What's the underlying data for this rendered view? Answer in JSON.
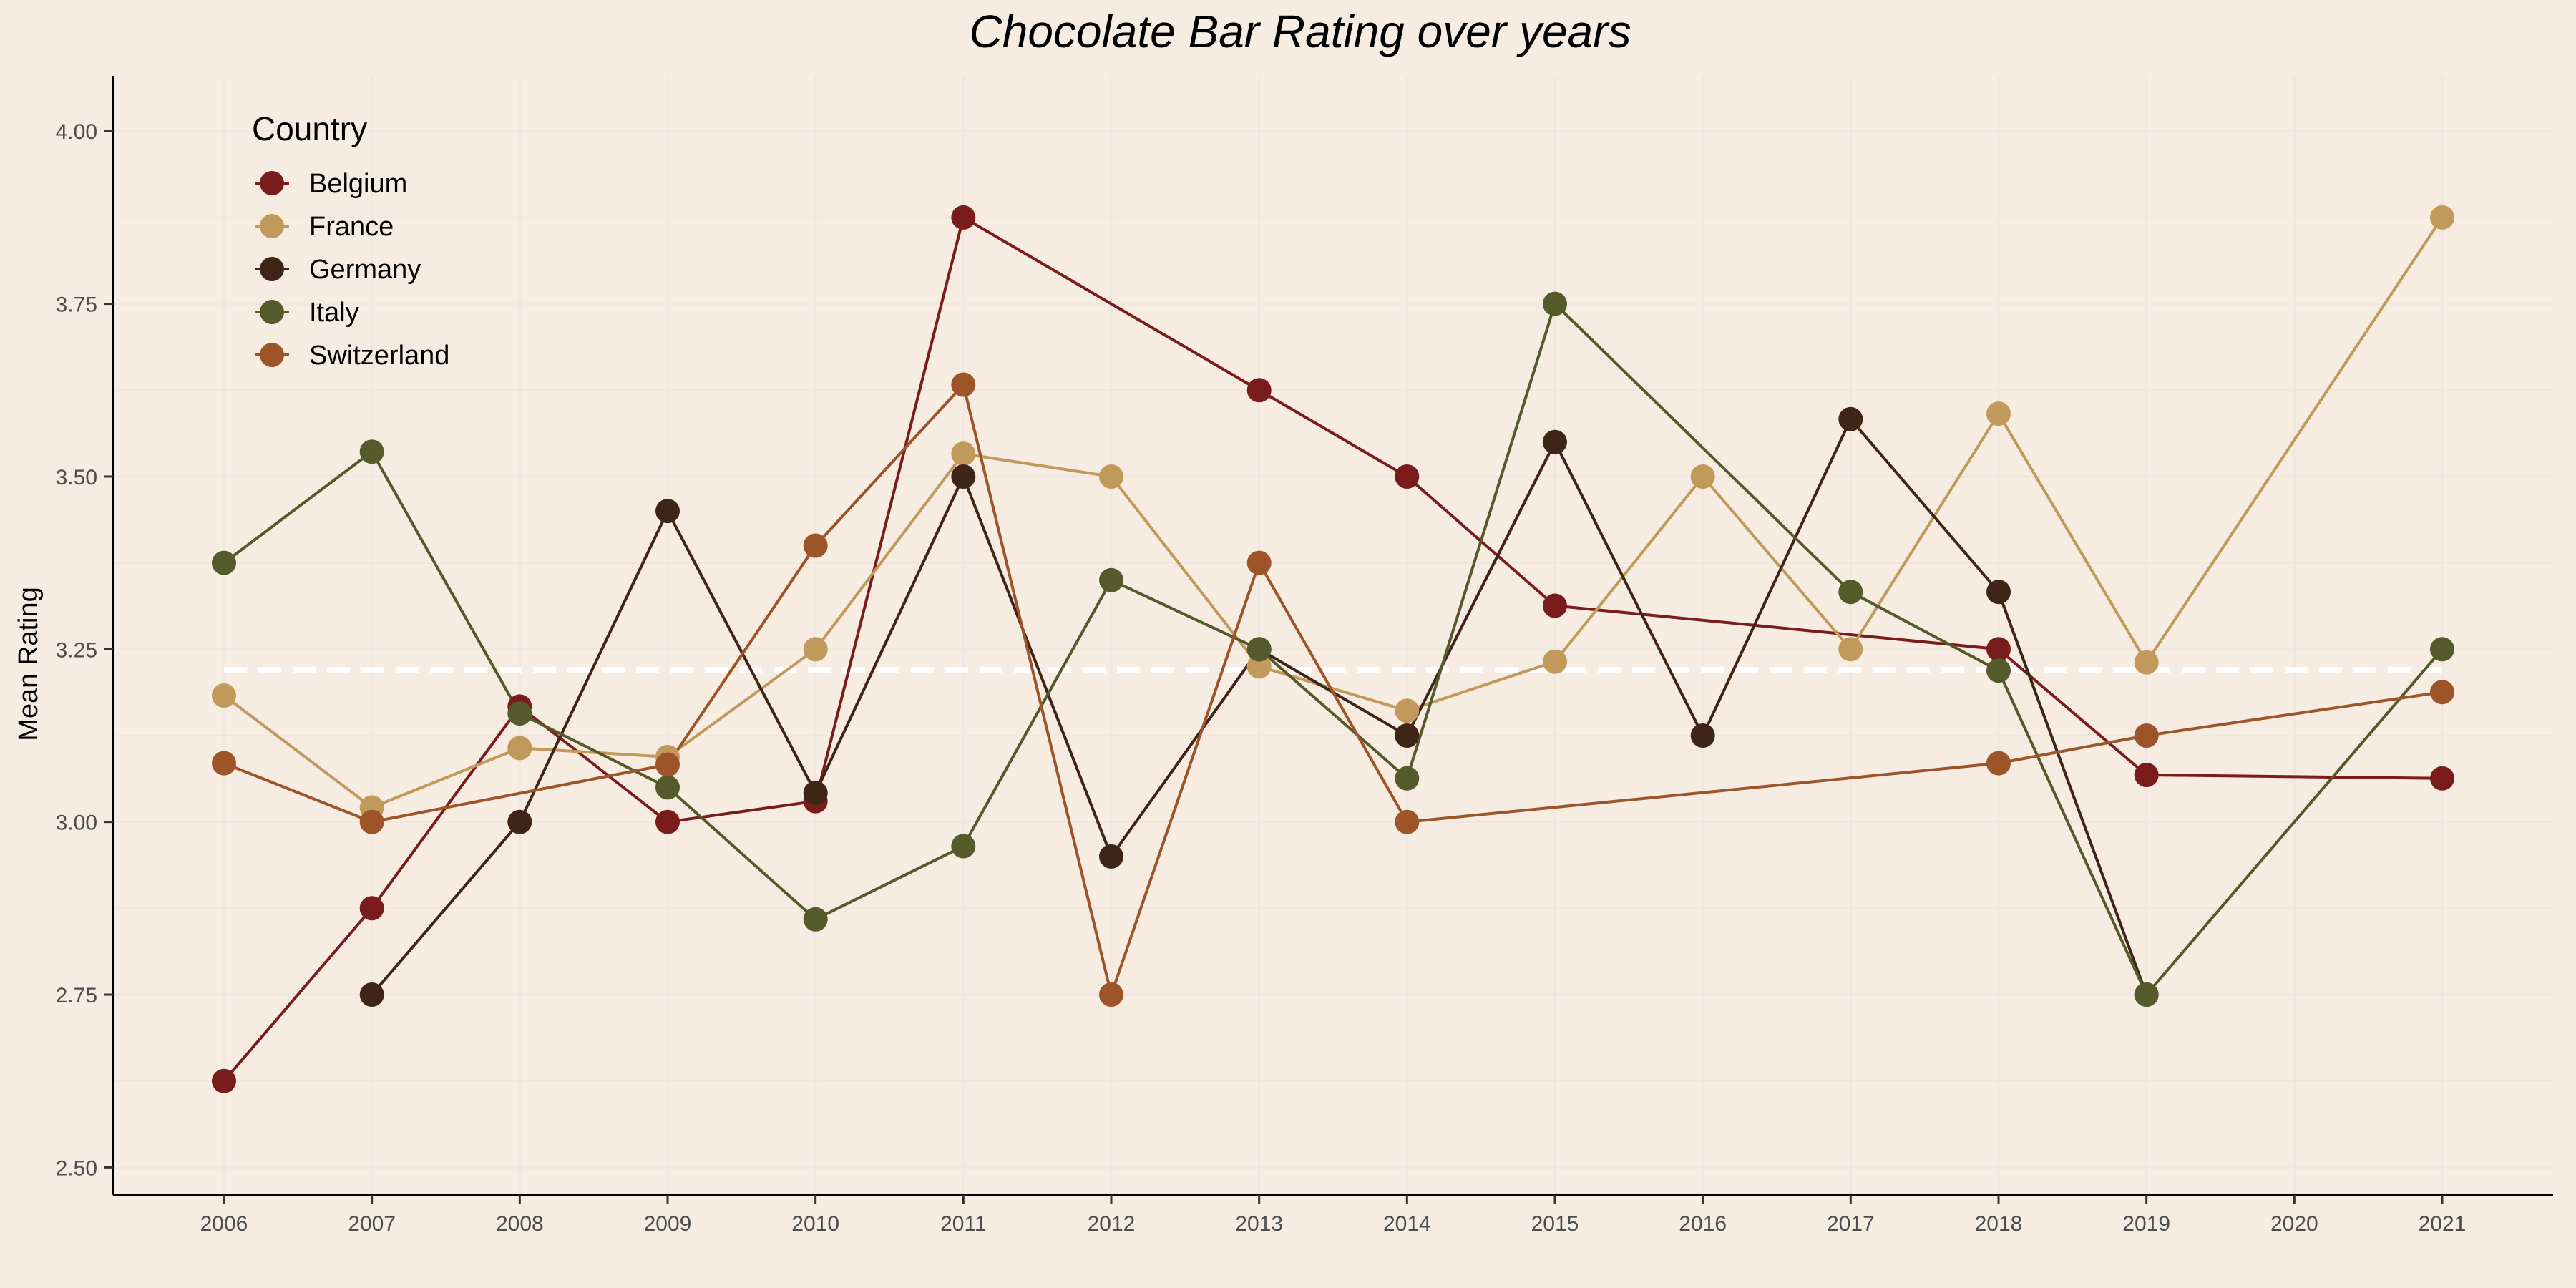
{
  "chart_data": {
    "type": "line",
    "title": "Chocolate Bar Rating over years",
    "xlabel": "",
    "ylabel": "Mean Rating",
    "x": [
      "2006",
      "2007",
      "2008",
      "2009",
      "2010",
      "2011",
      "2012",
      "2013",
      "2014",
      "2015",
      "2016",
      "2017",
      "2018",
      "2019",
      "2020",
      "2021"
    ],
    "ylim": [
      2.46,
      4.08
    ],
    "y_ticks": [
      "2.50",
      "2.75",
      "3.00",
      "3.25",
      "3.50",
      "3.75",
      "4.00"
    ],
    "grid": true,
    "reference_line": {
      "value": 3.22,
      "style": "dashed",
      "color": "#ffffff"
    },
    "legend": {
      "title": "Country",
      "position": "top-left"
    },
    "series": [
      {
        "name": "Belgium",
        "color": "#7a1c1c",
        "points": [
          [
            2006,
            2.625
          ],
          [
            2007,
            2.875
          ],
          [
            2008,
            3.167
          ],
          [
            2009,
            3.0
          ],
          [
            2010,
            3.03
          ],
          [
            2011,
            3.875
          ],
          [
            2013,
            3.625
          ],
          [
            2014,
            3.5
          ],
          [
            2015,
            3.313
          ],
          [
            2018,
            3.25
          ],
          [
            2019,
            3.068
          ],
          [
            2021,
            3.063
          ]
        ]
      },
      {
        "name": "France",
        "color": "#c19a5b",
        "points": [
          [
            2006,
            3.183
          ],
          [
            2007,
            3.021
          ],
          [
            2008,
            3.107
          ],
          [
            2009,
            3.094
          ],
          [
            2010,
            3.25
          ],
          [
            2011,
            3.533
          ],
          [
            2012,
            3.5
          ],
          [
            2013,
            3.225
          ],
          [
            2014,
            3.161
          ],
          [
            2015,
            3.232
          ],
          [
            2016,
            3.5
          ],
          [
            2017,
            3.25
          ],
          [
            2018,
            3.591
          ],
          [
            2019,
            3.231
          ],
          [
            2021,
            3.875
          ]
        ]
      },
      {
        "name": "Germany",
        "color": "#3f2418",
        "points": [
          [
            2007,
            2.75
          ],
          [
            2008,
            3.0
          ],
          [
            2009,
            3.45
          ],
          [
            2010,
            3.042
          ],
          [
            2011,
            3.5
          ],
          [
            2012,
            2.95
          ],
          [
            2013,
            3.25
          ],
          [
            2014,
            3.125
          ],
          [
            2015,
            3.55
          ],
          [
            2016,
            3.125
          ],
          [
            2017,
            3.583
          ],
          [
            2018,
            3.333
          ],
          [
            2019,
            2.75
          ]
        ]
      },
      {
        "name": "Italy",
        "color": "#545a2a",
        "points": [
          [
            2006,
            3.375
          ],
          [
            2007,
            3.536
          ],
          [
            2008,
            3.157
          ],
          [
            2009,
            3.05
          ],
          [
            2010,
            2.859
          ],
          [
            2011,
            2.965
          ],
          [
            2012,
            3.35
          ],
          [
            2013,
            3.25
          ],
          [
            2014,
            3.063
          ],
          [
            2015,
            3.75
          ],
          [
            2017,
            3.333
          ],
          [
            2018,
            3.219
          ],
          [
            2019,
            2.75
          ],
          [
            2021,
            3.25
          ]
        ]
      },
      {
        "name": "Switzerland",
        "color": "#9c5428",
        "points": [
          [
            2006,
            3.085
          ],
          [
            2007,
            3.0
          ],
          [
            2009,
            3.083
          ],
          [
            2010,
            3.4
          ],
          [
            2011,
            3.633
          ],
          [
            2012,
            2.75
          ],
          [
            2013,
            3.375
          ],
          [
            2014,
            3.0
          ],
          [
            2018,
            3.085
          ],
          [
            2019,
            3.125
          ],
          [
            2021,
            3.188
          ]
        ]
      }
    ]
  }
}
